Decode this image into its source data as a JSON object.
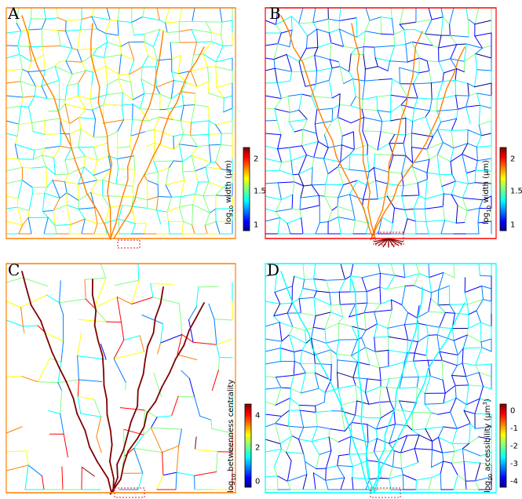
{
  "panels": [
    {
      "letter": "A",
      "colorbar": {
        "label_prefix": "log",
        "label_sub": "10",
        "label_main": "width (μm)",
        "label_sup": "",
        "label_suffix": "",
        "ticks": [
          "2",
          "1.5",
          "1"
        ]
      },
      "style": "width-warm",
      "source": "many-small"
    },
    {
      "letter": "B",
      "colorbar": {
        "label_prefix": "log",
        "label_sub": "10",
        "label_main": "width (μm)",
        "label_sup": "",
        "label_suffix": "",
        "ticks": [
          "2",
          "1.5",
          "1"
        ]
      },
      "style": "width-cool",
      "source": "star"
    },
    {
      "letter": "C",
      "colorbar": {
        "label_prefix": "log",
        "label_sub": "10",
        "label_main": "betweenness centrality",
        "label_sup": "",
        "label_suffix": "",
        "ticks": [
          "4",
          "2",
          "0"
        ]
      },
      "style": "tree",
      "source": "small"
    },
    {
      "letter": "D",
      "colorbar": {
        "label_prefix": "log",
        "label_sub": "10",
        "label_main": "accessibility (μm",
        "label_sup": "3",
        "label_suffix": ")",
        "ticks": [
          "0",
          "-1",
          "-2",
          "-3",
          "-4"
        ]
      },
      "style": "access",
      "source": "small"
    }
  ],
  "colormap": [
    "#00008f",
    "#0000ff",
    "#007fff",
    "#00ffff",
    "#7fff7f",
    "#ffff00",
    "#ff7f00",
    "#ff0000",
    "#7f0000"
  ],
  "source_marker_color": "#e0102a"
}
